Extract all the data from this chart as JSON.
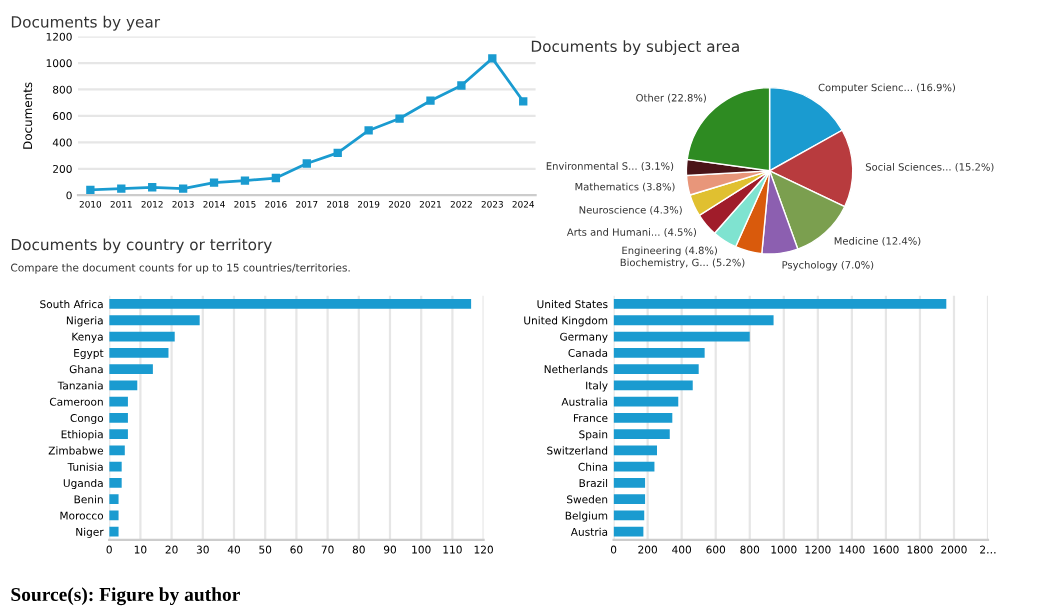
{
  "chart_data": [
    {
      "type": "line",
      "title": "Documents by year",
      "ylabel": "Documents",
      "categories": [
        "2010",
        "2011",
        "2012",
        "2013",
        "2014",
        "2015",
        "2016",
        "2017",
        "2018",
        "2019",
        "2020",
        "2021",
        "2022",
        "2023",
        "2024"
      ],
      "series": [
        {
          "color": "#1a9bd0",
          "values": [
            40,
            50,
            60,
            50,
            95,
            110,
            130,
            240,
            320,
            490,
            580,
            715,
            830,
            1035,
            710
          ]
        }
      ],
      "ylim": [
        0,
        1200
      ],
      "yticks": [
        0,
        200,
        400,
        600,
        800,
        1000,
        1200
      ],
      "grid": "y",
      "marker": "square",
      "line_style": "solid"
    },
    {
      "type": "pie",
      "title": "Documents by subject area",
      "categories": [
        "Computer Scienc...",
        "Social Sciences...",
        "Medicine",
        "Psychology",
        "Biochemistry, G...",
        "Engineering",
        "Arts and Humani...",
        "Neuroscience",
        "Mathematics",
        "Environmental S...",
        "Other"
      ],
      "values": [
        16.9,
        15.2,
        12.4,
        7.0,
        5.2,
        4.8,
        4.5,
        4.3,
        3.8,
        3.1,
        22.8
      ],
      "value_labels": [
        "(16.9%)",
        "(15.2%)",
        "(12.4%)",
        "(7.0%)",
        "(5.2%)",
        "(4.8%)",
        "(4.5%)",
        "(4.3%)",
        "(3.8%)",
        "(3.1%)",
        "(22.8%)"
      ],
      "colors": [
        "#1a9bd0",
        "#b83b3e",
        "#7b9f4f",
        "#8c5fb0",
        "#d95a0c",
        "#7fe3d0",
        "#a01c2a",
        "#e0c030",
        "#e8967a",
        "#4a1418",
        "#2e8b22"
      ]
    },
    {
      "type": "bar",
      "orientation": "horizontal",
      "title": "Documents by country or territory",
      "subtitle": "Compare the document counts for up to 15 countries/territories.",
      "categories": [
        "South Africa",
        "Nigeria",
        "Kenya",
        "Egypt",
        "Ghana",
        "Tanzania",
        "Cameroon",
        "Congo",
        "Ethiopia",
        "Zimbabwe",
        "Tunisia",
        "Uganda",
        "Benin",
        "Morocco",
        "Niger"
      ],
      "values": [
        116,
        29,
        21,
        19,
        14,
        9,
        6,
        6,
        6,
        5,
        4,
        4,
        3,
        3,
        3
      ],
      "color": "#1a9bd0",
      "xlim": [
        0,
        120
      ],
      "xticks": [
        0,
        10,
        20,
        30,
        40,
        50,
        60,
        70,
        80,
        90,
        100,
        110,
        120
      ],
      "grid": "x",
      "annotations": [
        "Source(s): Figure by author"
      ]
    },
    {
      "type": "bar",
      "orientation": "horizontal",
      "categories": [
        "United States",
        "United Kingdom",
        "Germany",
        "Canada",
        "Netherlands",
        "Italy",
        "Australia",
        "France",
        "Spain",
        "Switzerland",
        "China",
        "Brazil",
        "Sweden",
        "Belgium",
        "Austria"
      ],
      "values": [
        1955,
        940,
        800,
        535,
        500,
        465,
        380,
        345,
        330,
        255,
        240,
        185,
        185,
        180,
        175
      ],
      "color": "#1a9bd0",
      "xlim": [
        0,
        2200
      ],
      "xticks": [
        0,
        200,
        400,
        600,
        800,
        1000,
        1200,
        1400,
        1600,
        1800,
        2000,
        {
          "value": 2200,
          "label": "2…"
        }
      ],
      "grid": "x"
    }
  ]
}
